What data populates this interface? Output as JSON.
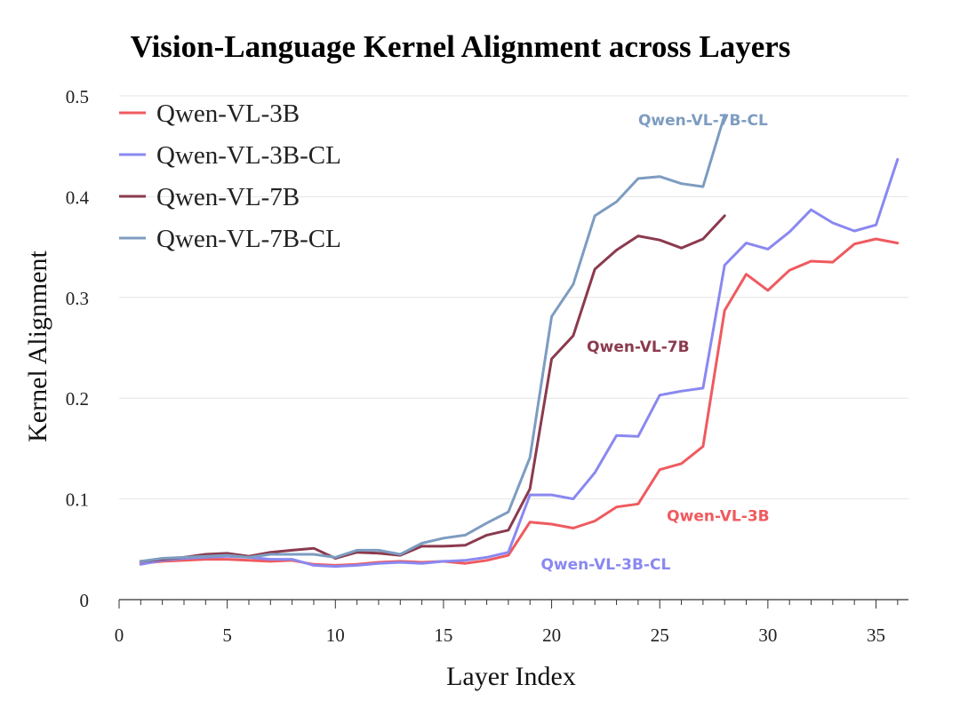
{
  "chart_data": {
    "type": "line",
    "title": "Vision-Language Kernel Alignment across Layers",
    "xlabel": "Layer Index",
    "ylabel": "Kernel Alignment",
    "xlim": [
      0,
      36.5
    ],
    "ylim": [
      0,
      0.5
    ],
    "xticks": [
      0,
      5,
      10,
      15,
      20,
      25,
      30,
      35
    ],
    "yticks": [
      0,
      0.1,
      0.2,
      0.3,
      0.4,
      0.5
    ],
    "xtick_labels": [
      "0",
      "5",
      "10",
      "15",
      "20",
      "25",
      "30",
      "35"
    ],
    "ytick_labels": [
      "0",
      "0.1",
      "0.2",
      "0.3",
      "0.4",
      "0.5"
    ],
    "grid": "horizontal",
    "legend_position": "top-left",
    "series": [
      {
        "name": "Qwen-VL-3B",
        "color": "#ef5a5f",
        "x": [
          1,
          2,
          3,
          4,
          5,
          6,
          7,
          8,
          9,
          10,
          11,
          12,
          13,
          14,
          15,
          16,
          17,
          18,
          19,
          20,
          21,
          22,
          23,
          24,
          25,
          26,
          27,
          28,
          29,
          30,
          31,
          32,
          33,
          34,
          35,
          36
        ],
        "values": [
          0.036,
          0.038,
          0.039,
          0.04,
          0.04,
          0.039,
          0.038,
          0.039,
          0.035,
          0.034,
          0.035,
          0.037,
          0.038,
          0.037,
          0.038,
          0.036,
          0.039,
          0.044,
          0.077,
          0.075,
          0.071,
          0.078,
          0.092,
          0.095,
          0.129,
          0.135,
          0.152,
          0.287,
          0.323,
          0.307,
          0.327,
          0.336,
          0.335,
          0.353,
          0.358,
          0.354
        ]
      },
      {
        "name": "Qwen-VL-3B-CL",
        "color": "#8a88f0",
        "x": [
          1,
          2,
          3,
          4,
          5,
          6,
          7,
          8,
          9,
          10,
          11,
          12,
          13,
          14,
          15,
          16,
          17,
          18,
          19,
          20,
          21,
          22,
          23,
          24,
          25,
          26,
          27,
          28,
          29,
          30,
          31,
          32,
          33,
          34,
          35,
          36
        ],
        "values": [
          0.035,
          0.039,
          0.041,
          0.042,
          0.043,
          0.042,
          0.04,
          0.04,
          0.034,
          0.033,
          0.034,
          0.036,
          0.037,
          0.036,
          0.038,
          0.039,
          0.042,
          0.047,
          0.104,
          0.104,
          0.1,
          0.126,
          0.163,
          0.162,
          0.203,
          0.207,
          0.21,
          0.332,
          0.354,
          0.348,
          0.365,
          0.387,
          0.374,
          0.366,
          0.372,
          0.437
        ]
      },
      {
        "name": "Qwen-VL-7B",
        "color": "#8b3a4e",
        "x": [
          1,
          2,
          3,
          4,
          5,
          6,
          7,
          8,
          9,
          10,
          11,
          12,
          13,
          14,
          15,
          16,
          17,
          18,
          19,
          20,
          21,
          22,
          23,
          24,
          25,
          26,
          27,
          28
        ],
        "values": [
          0.038,
          0.04,
          0.042,
          0.045,
          0.046,
          0.043,
          0.047,
          0.049,
          0.051,
          0.041,
          0.047,
          0.046,
          0.044,
          0.053,
          0.053,
          0.054,
          0.064,
          0.069,
          0.11,
          0.239,
          0.262,
          0.328,
          0.347,
          0.361,
          0.357,
          0.349,
          0.358,
          0.381
        ]
      },
      {
        "name": "Qwen-VL-7B-CL",
        "color": "#7d9cc0",
        "x": [
          1,
          2,
          3,
          4,
          5,
          6,
          7,
          8,
          9,
          10,
          11,
          12,
          13,
          14,
          15,
          16,
          17,
          18,
          19,
          20,
          21,
          22,
          23,
          24,
          25,
          26,
          27,
          28
        ],
        "values": [
          0.038,
          0.041,
          0.042,
          0.043,
          0.044,
          0.042,
          0.045,
          0.045,
          0.045,
          0.042,
          0.049,
          0.049,
          0.045,
          0.056,
          0.061,
          0.064,
          0.076,
          0.087,
          0.141,
          0.281,
          0.313,
          0.381,
          0.395,
          0.418,
          0.42,
          0.413,
          0.41,
          0.481
        ]
      }
    ],
    "annotations": [
      {
        "text": "Qwen-VL-7B-CL",
        "series": "Qwen-VL-7B-CL",
        "x": 27.0,
        "y": 0.471
      },
      {
        "text": "Qwen-VL-7B",
        "series": "Qwen-VL-7B",
        "x": 24.0,
        "y": 0.246
      },
      {
        "text": "Qwen-VL-3B",
        "series": "Qwen-VL-3B",
        "x": 27.7,
        "y": 0.078
      },
      {
        "text": "Qwen-VL-3B-CL",
        "series": "Qwen-VL-3B-CL",
        "x": 22.5,
        "y": 0.03
      }
    ]
  }
}
